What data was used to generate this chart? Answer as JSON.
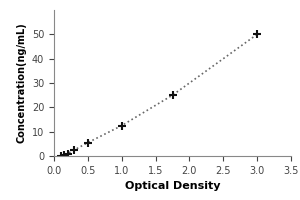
{
  "x": [
    0.1,
    0.15,
    0.2,
    0.3,
    0.5,
    1.0,
    1.75,
    3.0
  ],
  "y": [
    0.0,
    0.5,
    1.0,
    2.5,
    5.5,
    12.5,
    25.0,
    50.0
  ],
  "xlabel": "Optical Density",
  "ylabel": "Concentration(ng/mL)",
  "xlim": [
    0,
    3.5
  ],
  "ylim": [
    0,
    60
  ],
  "yticks": [
    0,
    10,
    20,
    30,
    40,
    50
  ],
  "xticks": [
    0,
    0.5,
    1.0,
    1.5,
    2.0,
    2.5,
    3.0,
    3.5
  ],
  "line_color": "#666666",
  "marker_color": "#111111",
  "line_style": ":",
  "line_width": 1.2,
  "marker_size": 6,
  "background_color": "#ffffff",
  "xlabel_fontsize": 8,
  "ylabel_fontsize": 7,
  "tick_fontsize": 7
}
